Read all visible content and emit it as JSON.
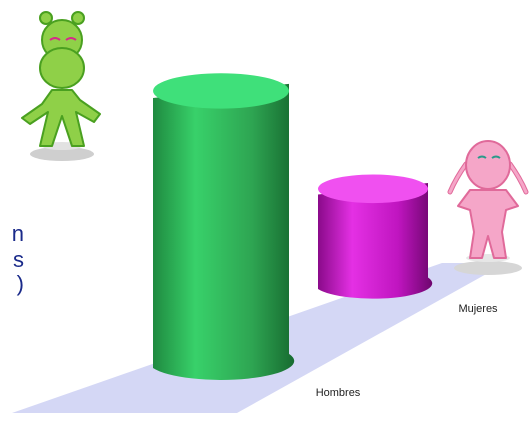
{
  "side_text": [
    "n",
    "s",
    ")"
  ],
  "chart_data": {
    "type": "bar",
    "categories": [
      "Hombres",
      "Mujeres"
    ],
    "values": [
      100,
      35
    ],
    "title": "",
    "xlabel": "",
    "ylabel": "",
    "ylim": [
      0,
      100
    ],
    "grid": false,
    "legend": "none",
    "colors": {
      "hombres": "#2fbf5a",
      "mujeres": "#cc16cc",
      "floor": "#d4d7f5"
    },
    "icons": [
      "boy-icon",
      "girl-icon"
    ]
  }
}
